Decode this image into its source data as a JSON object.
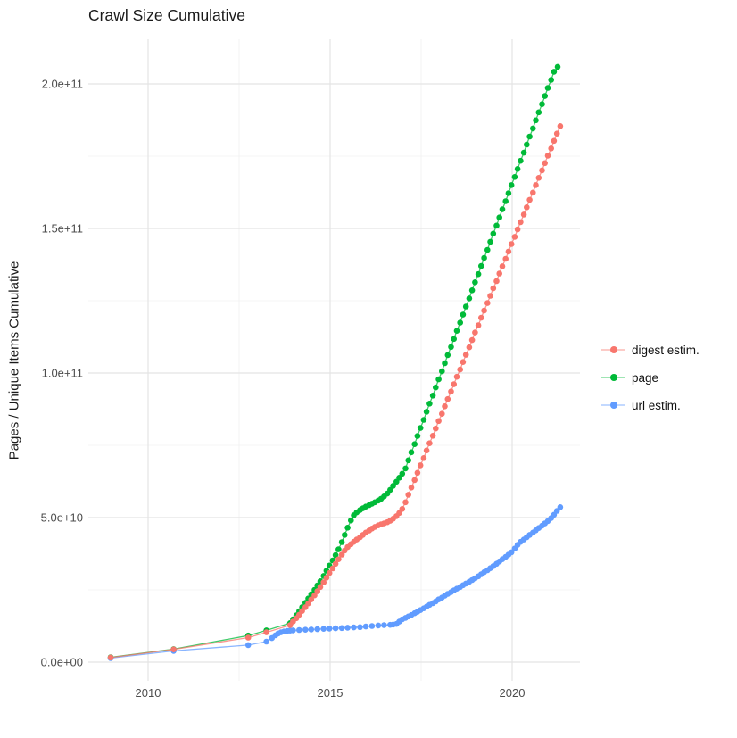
{
  "chart_data": {
    "type": "scatter",
    "title": "Crawl Size Cumulative",
    "xlabel": "",
    "ylabel": "Pages / Unique Items Cumulative",
    "grid": true,
    "legend_position": "right",
    "value_unit_note": "series point values are in billions (1e9) of pages/items; y tick labels shown in scientific notation",
    "xlim": [
      2008.4,
      2021.9
    ],
    "ylim_billions": [
      0,
      215
    ],
    "x_ticks": [
      {
        "label": "2010",
        "v": 2010
      },
      {
        "label": "2015",
        "v": 2015
      },
      {
        "label": "2020",
        "v": 2020
      }
    ],
    "x_minor": [
      2012.5,
      2017.5
    ],
    "y_ticks": [
      {
        "label": "0.0e+00",
        "v": 0
      },
      {
        "label": "5.0e+10",
        "v": 50
      },
      {
        "label": "1.0e+11",
        "v": 100
      },
      {
        "label": "1.5e+11",
        "v": 150
      },
      {
        "label": "2.0e+11",
        "v": 200
      }
    ],
    "y_minor": [
      25,
      75,
      125,
      175
    ],
    "series": [
      {
        "name": "digest estim.",
        "color": "#F8766D",
        "points": [
          [
            2008.97,
            1.6
          ],
          [
            2010.7,
            4.4
          ],
          [
            2012.75,
            8.5
          ],
          [
            2013.25,
            10.3
          ],
          [
            2013.9,
            12.8
          ],
          [
            2013.98,
            14
          ],
          [
            2014.07,
            15.2
          ],
          [
            2014.15,
            16.4
          ],
          [
            2014.23,
            17.7
          ],
          [
            2014.32,
            19
          ],
          [
            2014.4,
            20.3
          ],
          [
            2014.48,
            21.7
          ],
          [
            2014.57,
            23.1
          ],
          [
            2014.65,
            24.5
          ],
          [
            2014.73,
            26
          ],
          [
            2014.82,
            27.6
          ],
          [
            2014.9,
            29.2
          ],
          [
            2014.98,
            30.8
          ],
          [
            2015.07,
            32.4
          ],
          [
            2015.15,
            34
          ],
          [
            2015.23,
            35.6
          ],
          [
            2015.32,
            37.2
          ],
          [
            2015.4,
            38.6
          ],
          [
            2015.48,
            39.8
          ],
          [
            2015.57,
            40.8
          ],
          [
            2015.65,
            41.6
          ],
          [
            2015.73,
            42.4
          ],
          [
            2015.82,
            43.2
          ],
          [
            2015.9,
            44
          ],
          [
            2015.98,
            44.8
          ],
          [
            2016.07,
            45.5
          ],
          [
            2016.15,
            46.2
          ],
          [
            2016.23,
            46.8
          ],
          [
            2016.32,
            47.3
          ],
          [
            2016.4,
            47.7
          ],
          [
            2016.48,
            48
          ],
          [
            2016.57,
            48.4
          ],
          [
            2016.65,
            48.9
          ],
          [
            2016.73,
            49.6
          ],
          [
            2016.82,
            50.5
          ],
          [
            2016.9,
            51.6
          ],
          [
            2016.98,
            53
          ],
          [
            2017.07,
            55.3
          ],
          [
            2017.15,
            57.9
          ],
          [
            2017.23,
            60.4
          ],
          [
            2017.32,
            63
          ],
          [
            2017.4,
            65.5
          ],
          [
            2017.48,
            68.1
          ],
          [
            2017.57,
            70.6
          ],
          [
            2017.65,
            73.2
          ],
          [
            2017.73,
            75.7
          ],
          [
            2017.82,
            78.3
          ],
          [
            2017.9,
            80.8
          ],
          [
            2017.98,
            83.4
          ],
          [
            2018.07,
            85.9
          ],
          [
            2018.15,
            88.5
          ],
          [
            2018.23,
            91
          ],
          [
            2018.32,
            93.6
          ],
          [
            2018.4,
            96.1
          ],
          [
            2018.48,
            98.7
          ],
          [
            2018.57,
            101.2
          ],
          [
            2018.65,
            103.8
          ],
          [
            2018.73,
            106.3
          ],
          [
            2018.82,
            108.9
          ],
          [
            2018.9,
            111.4
          ],
          [
            2018.98,
            114
          ],
          [
            2019.07,
            116.5
          ],
          [
            2019.15,
            119.1
          ],
          [
            2019.23,
            121.6
          ],
          [
            2019.32,
            124.2
          ],
          [
            2019.4,
            126.7
          ],
          [
            2019.48,
            129.3
          ],
          [
            2019.57,
            131.8
          ],
          [
            2019.65,
            134.4
          ],
          [
            2019.73,
            136.9
          ],
          [
            2019.82,
            139.5
          ],
          [
            2019.9,
            142
          ],
          [
            2019.98,
            144.6
          ],
          [
            2020.07,
            147.1
          ],
          [
            2020.15,
            149.7
          ],
          [
            2020.23,
            152.2
          ],
          [
            2020.32,
            154.8
          ],
          [
            2020.4,
            157.3
          ],
          [
            2020.48,
            159.9
          ],
          [
            2020.57,
            162.4
          ],
          [
            2020.65,
            165
          ],
          [
            2020.73,
            167.5
          ],
          [
            2020.82,
            170.1
          ],
          [
            2020.9,
            172.6
          ],
          [
            2020.98,
            175.2
          ],
          [
            2021.07,
            177.7
          ],
          [
            2021.15,
            180.3
          ],
          [
            2021.23,
            182.8
          ],
          [
            2021.32,
            185.4
          ]
        ]
      },
      {
        "name": "page",
        "color": "#00BA38",
        "points": [
          [
            2008.97,
            1.7
          ],
          [
            2010.7,
            4.5
          ],
          [
            2012.75,
            9.2
          ],
          [
            2013.25,
            11
          ],
          [
            2013.9,
            13.5
          ],
          [
            2013.98,
            14.8
          ],
          [
            2014.07,
            16.2
          ],
          [
            2014.15,
            17.6
          ],
          [
            2014.23,
            19
          ],
          [
            2014.32,
            20.5
          ],
          [
            2014.4,
            22
          ],
          [
            2014.48,
            23.5
          ],
          [
            2014.57,
            25
          ],
          [
            2014.65,
            26.5
          ],
          [
            2014.73,
            28
          ],
          [
            2014.82,
            29.8
          ],
          [
            2014.9,
            31.6
          ],
          [
            2014.98,
            33.4
          ],
          [
            2015.07,
            35.2
          ],
          [
            2015.15,
            37
          ],
          [
            2015.23,
            39
          ],
          [
            2015.32,
            41.5
          ],
          [
            2015.4,
            44
          ],
          [
            2015.48,
            46.5
          ],
          [
            2015.57,
            49
          ],
          [
            2015.65,
            50.8
          ],
          [
            2015.73,
            51.8
          ],
          [
            2015.82,
            52.6
          ],
          [
            2015.9,
            53.2
          ],
          [
            2015.98,
            53.8
          ],
          [
            2016.07,
            54.3
          ],
          [
            2016.15,
            54.8
          ],
          [
            2016.23,
            55.3
          ],
          [
            2016.32,
            55.9
          ],
          [
            2016.4,
            56.5
          ],
          [
            2016.48,
            57.3
          ],
          [
            2016.57,
            58.3
          ],
          [
            2016.65,
            59.6
          ],
          [
            2016.73,
            61
          ],
          [
            2016.82,
            62.4
          ],
          [
            2016.9,
            63.8
          ],
          [
            2016.98,
            65.2
          ],
          [
            2017.07,
            67
          ],
          [
            2017.15,
            69.8
          ],
          [
            2017.23,
            72.6
          ],
          [
            2017.32,
            75.4
          ],
          [
            2017.4,
            78.2
          ],
          [
            2017.48,
            81
          ],
          [
            2017.57,
            83.8
          ],
          [
            2017.65,
            86.6
          ],
          [
            2017.73,
            89.4
          ],
          [
            2017.82,
            92.2
          ],
          [
            2017.9,
            95
          ],
          [
            2017.98,
            97.8
          ],
          [
            2018.07,
            100.6
          ],
          [
            2018.15,
            103.4
          ],
          [
            2018.23,
            106.2
          ],
          [
            2018.32,
            109
          ],
          [
            2018.4,
            111.8
          ],
          [
            2018.48,
            114.6
          ],
          [
            2018.57,
            117.4
          ],
          [
            2018.65,
            120.2
          ],
          [
            2018.73,
            123
          ],
          [
            2018.82,
            125.8
          ],
          [
            2018.9,
            128.6
          ],
          [
            2018.98,
            131.4
          ],
          [
            2019.07,
            134.2
          ],
          [
            2019.15,
            137
          ],
          [
            2019.23,
            139.8
          ],
          [
            2019.32,
            142.6
          ],
          [
            2019.4,
            145.4
          ],
          [
            2019.48,
            148.2
          ],
          [
            2019.57,
            151
          ],
          [
            2019.65,
            153.8
          ],
          [
            2019.73,
            156.6
          ],
          [
            2019.82,
            159.4
          ],
          [
            2019.9,
            162.2
          ],
          [
            2019.98,
            165
          ],
          [
            2020.07,
            167.8
          ],
          [
            2020.15,
            170.6
          ],
          [
            2020.23,
            173.4
          ],
          [
            2020.32,
            176.2
          ],
          [
            2020.4,
            179
          ],
          [
            2020.48,
            181.8
          ],
          [
            2020.57,
            184.6
          ],
          [
            2020.65,
            187.4
          ],
          [
            2020.73,
            190.2
          ],
          [
            2020.82,
            193
          ],
          [
            2020.9,
            195.8
          ],
          [
            2020.98,
            198.6
          ],
          [
            2021.07,
            201.4
          ],
          [
            2021.15,
            204.2
          ],
          [
            2021.25,
            205.9
          ]
        ]
      },
      {
        "name": "url estim.",
        "color": "#619CFF",
        "points": [
          [
            2008.97,
            1.4
          ],
          [
            2010.7,
            3.9
          ],
          [
            2012.75,
            5.9
          ],
          [
            2013.25,
            7.1
          ],
          [
            2013.4,
            8.3
          ],
          [
            2013.5,
            9.3
          ],
          [
            2013.57,
            9.9
          ],
          [
            2013.65,
            10.3
          ],
          [
            2013.73,
            10.6
          ],
          [
            2013.82,
            10.8
          ],
          [
            2013.9,
            10.9
          ],
          [
            2013.98,
            11
          ],
          [
            2014.15,
            11.1
          ],
          [
            2014.32,
            11.2
          ],
          [
            2014.48,
            11.3
          ],
          [
            2014.65,
            11.4
          ],
          [
            2014.82,
            11.5
          ],
          [
            2014.98,
            11.6
          ],
          [
            2015.15,
            11.7
          ],
          [
            2015.32,
            11.8
          ],
          [
            2015.48,
            11.9
          ],
          [
            2015.65,
            12
          ],
          [
            2015.82,
            12.1
          ],
          [
            2015.98,
            12.3
          ],
          [
            2016.15,
            12.5
          ],
          [
            2016.32,
            12.7
          ],
          [
            2016.48,
            12.8
          ],
          [
            2016.65,
            12.9
          ],
          [
            2016.73,
            13
          ],
          [
            2016.82,
            13.2
          ],
          [
            2016.9,
            14
          ],
          [
            2016.98,
            14.8
          ],
          [
            2017.07,
            15.3
          ],
          [
            2017.15,
            15.8
          ],
          [
            2017.23,
            16.3
          ],
          [
            2017.32,
            16.9
          ],
          [
            2017.4,
            17.4
          ],
          [
            2017.48,
            18
          ],
          [
            2017.57,
            18.6
          ],
          [
            2017.65,
            19.2
          ],
          [
            2017.73,
            19.8
          ],
          [
            2017.82,
            20.4
          ],
          [
            2017.9,
            21
          ],
          [
            2017.98,
            21.7
          ],
          [
            2018.07,
            22.3
          ],
          [
            2018.15,
            23
          ],
          [
            2018.23,
            23.6
          ],
          [
            2018.32,
            24.2
          ],
          [
            2018.4,
            24.8
          ],
          [
            2018.48,
            25.4
          ],
          [
            2018.57,
            26
          ],
          [
            2018.65,
            26.6
          ],
          [
            2018.73,
            27.2
          ],
          [
            2018.82,
            27.8
          ],
          [
            2018.9,
            28.4
          ],
          [
            2018.98,
            29
          ],
          [
            2019.07,
            29.7
          ],
          [
            2019.15,
            30.4
          ],
          [
            2019.23,
            31.1
          ],
          [
            2019.32,
            31.8
          ],
          [
            2019.4,
            32.5
          ],
          [
            2019.48,
            33.2
          ],
          [
            2019.57,
            34
          ],
          [
            2019.65,
            34.8
          ],
          [
            2019.73,
            35.6
          ],
          [
            2019.82,
            36.4
          ],
          [
            2019.9,
            37.2
          ],
          [
            2019.98,
            38
          ],
          [
            2020.07,
            39.3
          ],
          [
            2020.15,
            40.6
          ],
          [
            2020.23,
            41.6
          ],
          [
            2020.32,
            42.4
          ],
          [
            2020.4,
            43.2
          ],
          [
            2020.48,
            44
          ],
          [
            2020.57,
            44.8
          ],
          [
            2020.65,
            45.6
          ],
          [
            2020.73,
            46.4
          ],
          [
            2020.82,
            47.2
          ],
          [
            2020.9,
            48
          ],
          [
            2020.98,
            48.8
          ],
          [
            2021.07,
            49.8
          ],
          [
            2021.15,
            51
          ],
          [
            2021.23,
            52.3
          ],
          [
            2021.32,
            53.6
          ]
        ]
      }
    ],
    "style": {
      "background": "#FFFFFF",
      "grid_major_color": "#E4E4E4",
      "grid_minor_color": "#F0F0F0",
      "tick_label_color": "#4d4d4d",
      "title_color": "#1a1a1a",
      "point_radius": 3.3
    }
  }
}
